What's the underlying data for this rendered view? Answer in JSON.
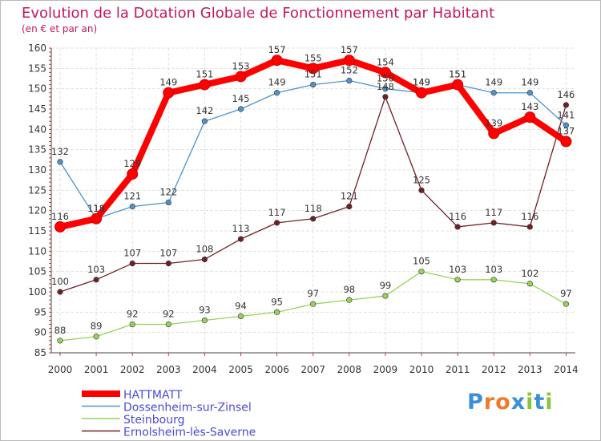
{
  "chart_data": {
    "type": "line",
    "title": "Evolution de la Dotation Globale de Fonctionnement par Habitant",
    "subtitle": "(en € et par an)",
    "x": [
      "2000",
      "2001",
      "2002",
      "2003",
      "2004",
      "2005",
      "2006",
      "2007",
      "2008",
      "2009",
      "2010",
      "2011",
      "2012",
      "2013",
      "2014"
    ],
    "ylim": [
      85,
      160
    ],
    "yticks": [
      85,
      90,
      95,
      100,
      105,
      110,
      115,
      120,
      125,
      130,
      135,
      140,
      145,
      150,
      155,
      160
    ],
    "grid": true,
    "legend_position": "bottom-left",
    "series": [
      {
        "name": "HATTMATT",
        "color": "#ff0000",
        "values": [
          116,
          118,
          129,
          149,
          151,
          153,
          157,
          155,
          157,
          154,
          149,
          151,
          139,
          143,
          137
        ]
      },
      {
        "name": "Dossenheim-sur-Zinsel",
        "color": "#4f93cb",
        "values": [
          132,
          118,
          121,
          122,
          142,
          145,
          149,
          151,
          152,
          150,
          149,
          151,
          149,
          149,
          141
        ]
      },
      {
        "name": "Steinbourg",
        "color": "#99d15e",
        "values": [
          88,
          89,
          92,
          92,
          93,
          94,
          95,
          97,
          98,
          99,
          105,
          103,
          103,
          102,
          97
        ]
      },
      {
        "name": "Ernolsheim-lès-Saverne",
        "color": "#6e2027",
        "values": [
          100,
          103,
          107,
          107,
          108,
          113,
          117,
          118,
          121,
          148,
          125,
          116,
          117,
          116,
          146
        ]
      }
    ]
  },
  "branding": {
    "text": "Proxiti",
    "letters": [
      "P",
      "r",
      "o",
      "x",
      "i",
      "t",
      "i"
    ],
    "colors": [
      "#3b8fd9",
      "#ef7b2a",
      "#ef7b2a",
      "#3b8fd9",
      "#8ac43f",
      "#3b8fd9",
      "#8ac43f"
    ]
  }
}
